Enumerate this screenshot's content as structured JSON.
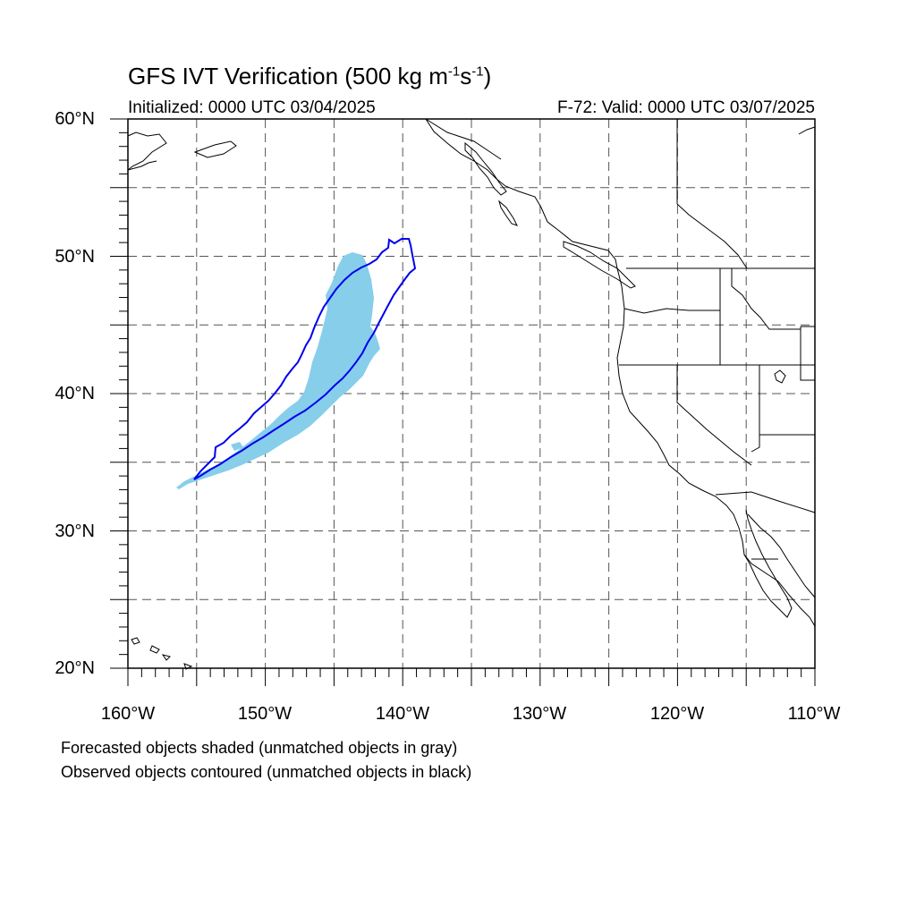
{
  "title_main": "GFS IVT Verification (500 kg m",
  "title_sup1": "-1",
  "title_mid": "s",
  "title_sup2": "-1",
  "title_end": ")",
  "initialized": "Initialized: 0000 UTC 03/04/2025",
  "valid": "F-72: Valid: 0000 UTC 03/07/2025",
  "lat_labels": [
    "60°N",
    "50°N",
    "40°N",
    "30°N",
    "20°N"
  ],
  "lon_labels": [
    "160°W",
    "150°W",
    "140°W",
    "130°W",
    "120°W",
    "110°W"
  ],
  "note_forecast": "Forecasted objects shaded (unmatched objects in gray)",
  "note_observed": "Observed objects contoured (unmatched objects in black)",
  "colors": {
    "forecast_fill": "#87ceeb",
    "observed_contour": "#0000ee",
    "coastline": "#000000",
    "grid": "#555555"
  }
}
